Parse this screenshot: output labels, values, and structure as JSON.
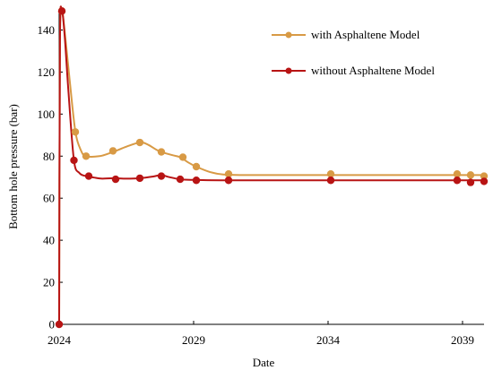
{
  "chart_data": {
    "type": "line",
    "xlabel": "Date",
    "ylabel": "Bottom hole pressure (bar)",
    "xlim": [
      2024,
      2039.8
    ],
    "ylim": [
      0,
      150
    ],
    "x_ticks": [
      2024,
      2029,
      2034,
      2039
    ],
    "x_tick_labels": [
      "2024",
      "2029",
      "2034",
      "2039"
    ],
    "y_ticks": [
      0,
      20,
      40,
      60,
      80,
      100,
      120,
      140
    ],
    "y_tick_labels": [
      "0",
      "20",
      "40",
      "60",
      "80",
      "100",
      "120",
      "140"
    ],
    "grid": false,
    "legend_position": "top-right",
    "series": [
      {
        "name": "with Asphaltene Model",
        "color": "#d89a45",
        "line": [
          [
            2024.0,
            0
          ],
          [
            2024.03,
            135
          ],
          [
            2024.1,
            149
          ],
          [
            2024.2,
            140
          ],
          [
            2024.4,
            115
          ],
          [
            2024.6,
            92
          ],
          [
            2024.8,
            83
          ],
          [
            2025.0,
            80
          ],
          [
            2025.5,
            80
          ],
          [
            2026.0,
            82
          ],
          [
            2026.5,
            84.5
          ],
          [
            2027.0,
            86.5
          ],
          [
            2027.3,
            85.5
          ],
          [
            2027.7,
            82.5
          ],
          [
            2028.2,
            80.5
          ],
          [
            2028.5,
            79.5
          ],
          [
            2028.8,
            77
          ],
          [
            2029.1,
            75
          ],
          [
            2029.6,
            72.5
          ],
          [
            2030.1,
            71.3
          ],
          [
            2031,
            71
          ],
          [
            2033,
            71
          ],
          [
            2036,
            71
          ],
          [
            2039,
            71
          ],
          [
            2039.8,
            71
          ]
        ],
        "points": [
          [
            2024.1,
            149
          ],
          [
            2024.6,
            91.5
          ],
          [
            2025.0,
            80
          ],
          [
            2026.0,
            82.5
          ],
          [
            2027.0,
            86.5
          ],
          [
            2027.8,
            82
          ],
          [
            2028.6,
            79.5
          ],
          [
            2029.1,
            75
          ],
          [
            2030.3,
            71.5
          ],
          [
            2034.1,
            71.5
          ],
          [
            2038.8,
            71.5
          ],
          [
            2039.3,
            71
          ],
          [
            2039.8,
            70.5
          ]
        ]
      },
      {
        "name": "without Asphaltene Model",
        "color": "#b81414",
        "line": [
          [
            2024.0,
            0
          ],
          [
            2024.03,
            135
          ],
          [
            2024.1,
            149
          ],
          [
            2024.2,
            138
          ],
          [
            2024.35,
            110
          ],
          [
            2024.55,
            78
          ],
          [
            2024.75,
            72
          ],
          [
            2025.0,
            70.5
          ],
          [
            2025.3,
            69.8
          ],
          [
            2025.6,
            69.3
          ],
          [
            2026.0,
            69.5
          ],
          [
            2026.5,
            69.3
          ],
          [
            2027.0,
            69.5
          ],
          [
            2027.5,
            70.3
          ],
          [
            2027.8,
            71
          ],
          [
            2028.1,
            70
          ],
          [
            2028.5,
            69
          ],
          [
            2029.0,
            68.7
          ],
          [
            2030.0,
            68.5
          ],
          [
            2032,
            68.5
          ],
          [
            2034,
            68.5
          ],
          [
            2037,
            68.5
          ],
          [
            2039,
            68.5
          ],
          [
            2039.8,
            68.5
          ]
        ],
        "points": [
          [
            2024.1,
            149
          ],
          [
            2024.0,
            0
          ],
          [
            2024.55,
            78
          ],
          [
            2025.1,
            70.5
          ],
          [
            2026.1,
            69
          ],
          [
            2027.0,
            69.5
          ],
          [
            2027.8,
            70.5
          ],
          [
            2028.5,
            69
          ],
          [
            2029.1,
            68.5
          ],
          [
            2030.3,
            68.5
          ],
          [
            2034.1,
            68.5
          ],
          [
            2038.8,
            68.5
          ],
          [
            2039.3,
            67.5
          ],
          [
            2039.8,
            68
          ]
        ]
      }
    ]
  }
}
